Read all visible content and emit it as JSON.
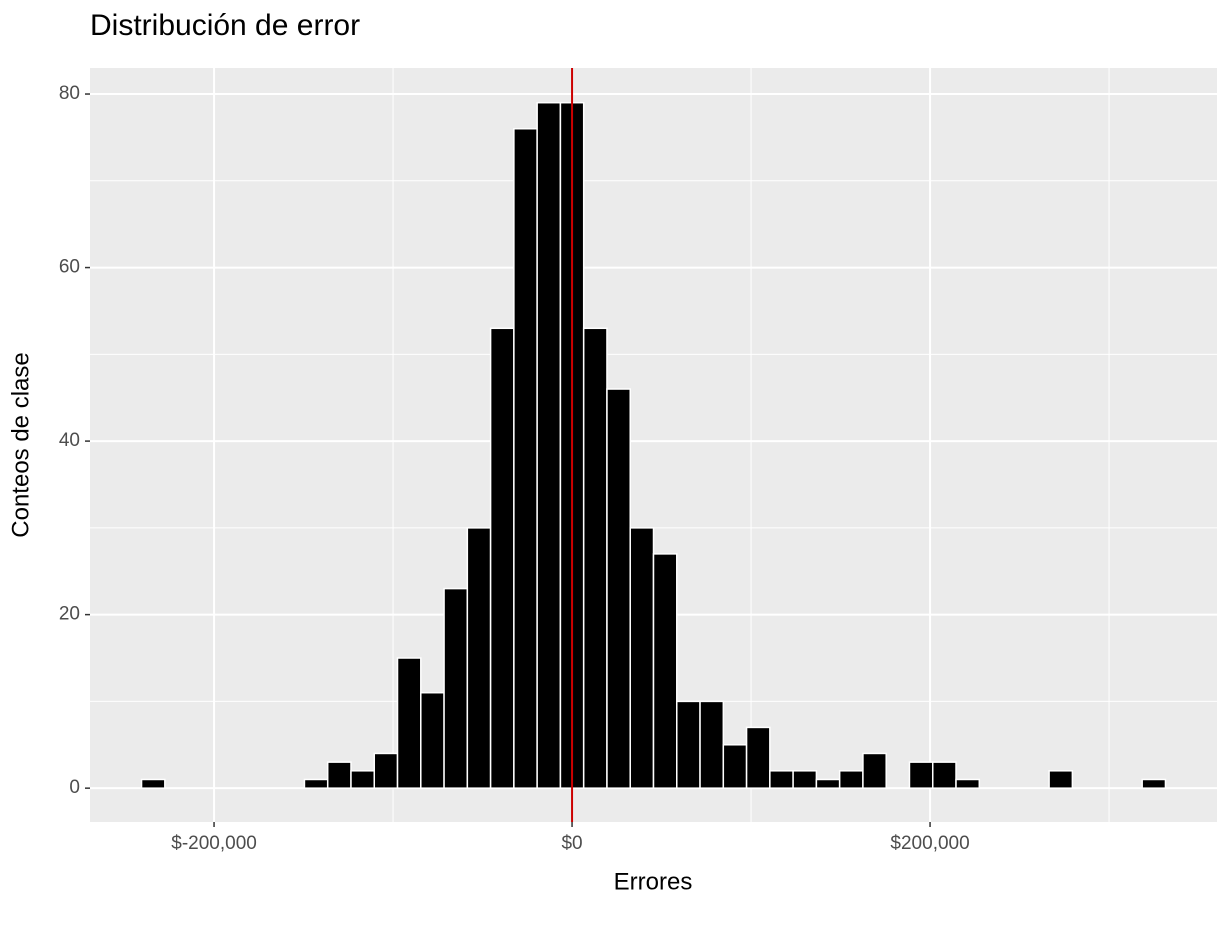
{
  "chart_data": {
    "type": "histogram",
    "title": "Distribución de error",
    "x_label": "Errores",
    "y_label": "Conteos de clase",
    "bins": [
      -240500,
      -227500,
      -214500,
      -201500,
      -188500,
      -175500,
      -162500,
      -149500,
      -136500,
      -123500,
      -110500,
      -97500,
      -84500,
      -71500,
      -58500,
      -45500,
      -32500,
      -19500,
      -6500,
      6500,
      19500,
      32500,
      45500,
      58500,
      71500,
      84500,
      97500,
      110500,
      123500,
      136500,
      149500,
      162500,
      175500,
      188500,
      201500,
      214500,
      227500,
      240500,
      253500,
      266500,
      279500,
      292500,
      305500,
      318500,
      331500
    ],
    "values": [
      1,
      0,
      0,
      0,
      0,
      0,
      0,
      1,
      3,
      2,
      4,
      15,
      11,
      23,
      30,
      53,
      76,
      79,
      79,
      53,
      46,
      30,
      27,
      10,
      10,
      5,
      7,
      2,
      2,
      1,
      2,
      4,
      0,
      3,
      3,
      1,
      0,
      0,
      0,
      2,
      0,
      0,
      0,
      1
    ],
    "color": "#000000",
    "edge_color": "#ffffff",
    "xlim": [
      -269300,
      360300
    ],
    "ylim": [
      -3.9,
      83
    ],
    "xticks": [
      {
        "value": -200000,
        "label": "$-200,000"
      },
      {
        "value": 0,
        "label": "$0"
      },
      {
        "value": 200000,
        "label": "$200,000"
      }
    ],
    "yticks": [
      0,
      20,
      40,
      60,
      80
    ],
    "vline": 0,
    "vline_color": "#cc0000",
    "grid": true
  }
}
